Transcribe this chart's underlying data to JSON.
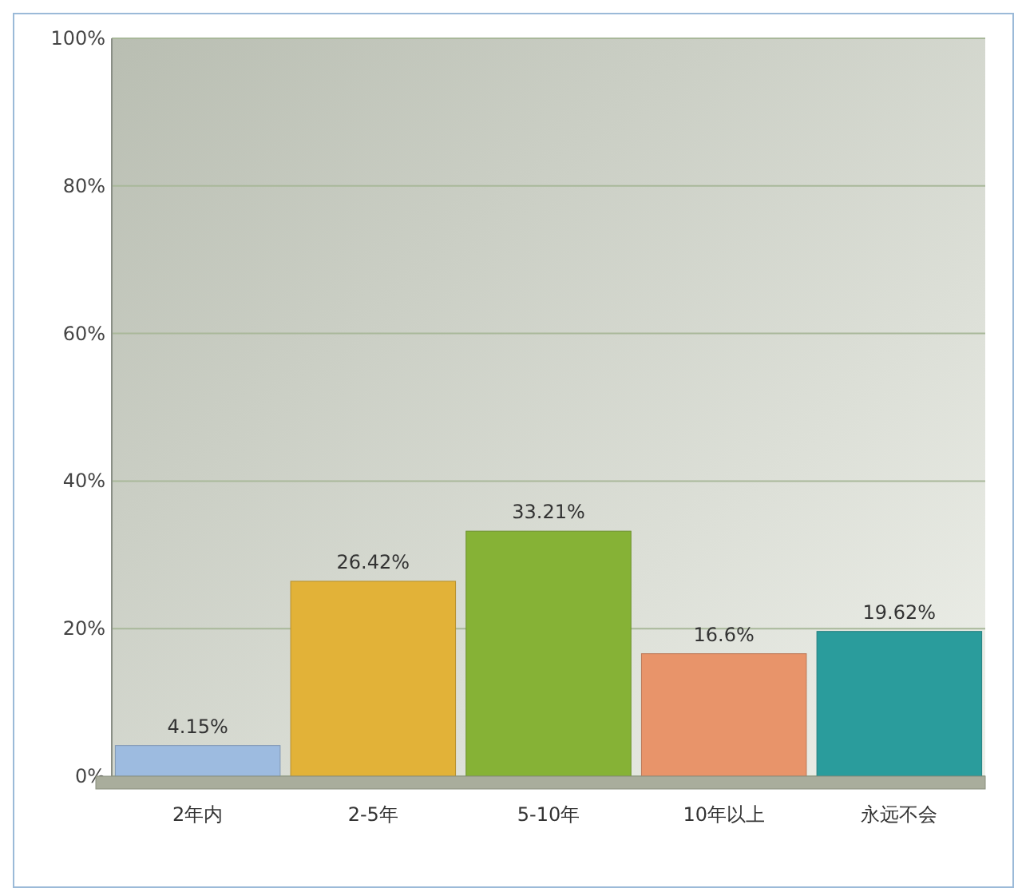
{
  "chart_data": {
    "type": "bar",
    "categories": [
      "2年内",
      "2-5年",
      "5-10年",
      "10年以上",
      "永远不会"
    ],
    "values": [
      4.15,
      26.42,
      33.21,
      16.6,
      19.62
    ],
    "colors": [
      "#9dbbe0",
      "#e2b238",
      "#86b236",
      "#e8946a",
      "#2a9c9c"
    ],
    "value_labels": [
      "4.15%",
      "26.42%",
      "33.21%",
      "16.6%",
      "19.62%"
    ],
    "ylim": [
      0,
      100
    ],
    "yticks": [
      {
        "value": 0,
        "label": "0%"
      },
      {
        "value": 20,
        "label": "20%"
      },
      {
        "value": 40,
        "label": "40%"
      },
      {
        "value": 60,
        "label": "60%"
      },
      {
        "value": 80,
        "label": "80%"
      },
      {
        "value": 100,
        "label": "100%"
      }
    ],
    "grid": "y"
  }
}
